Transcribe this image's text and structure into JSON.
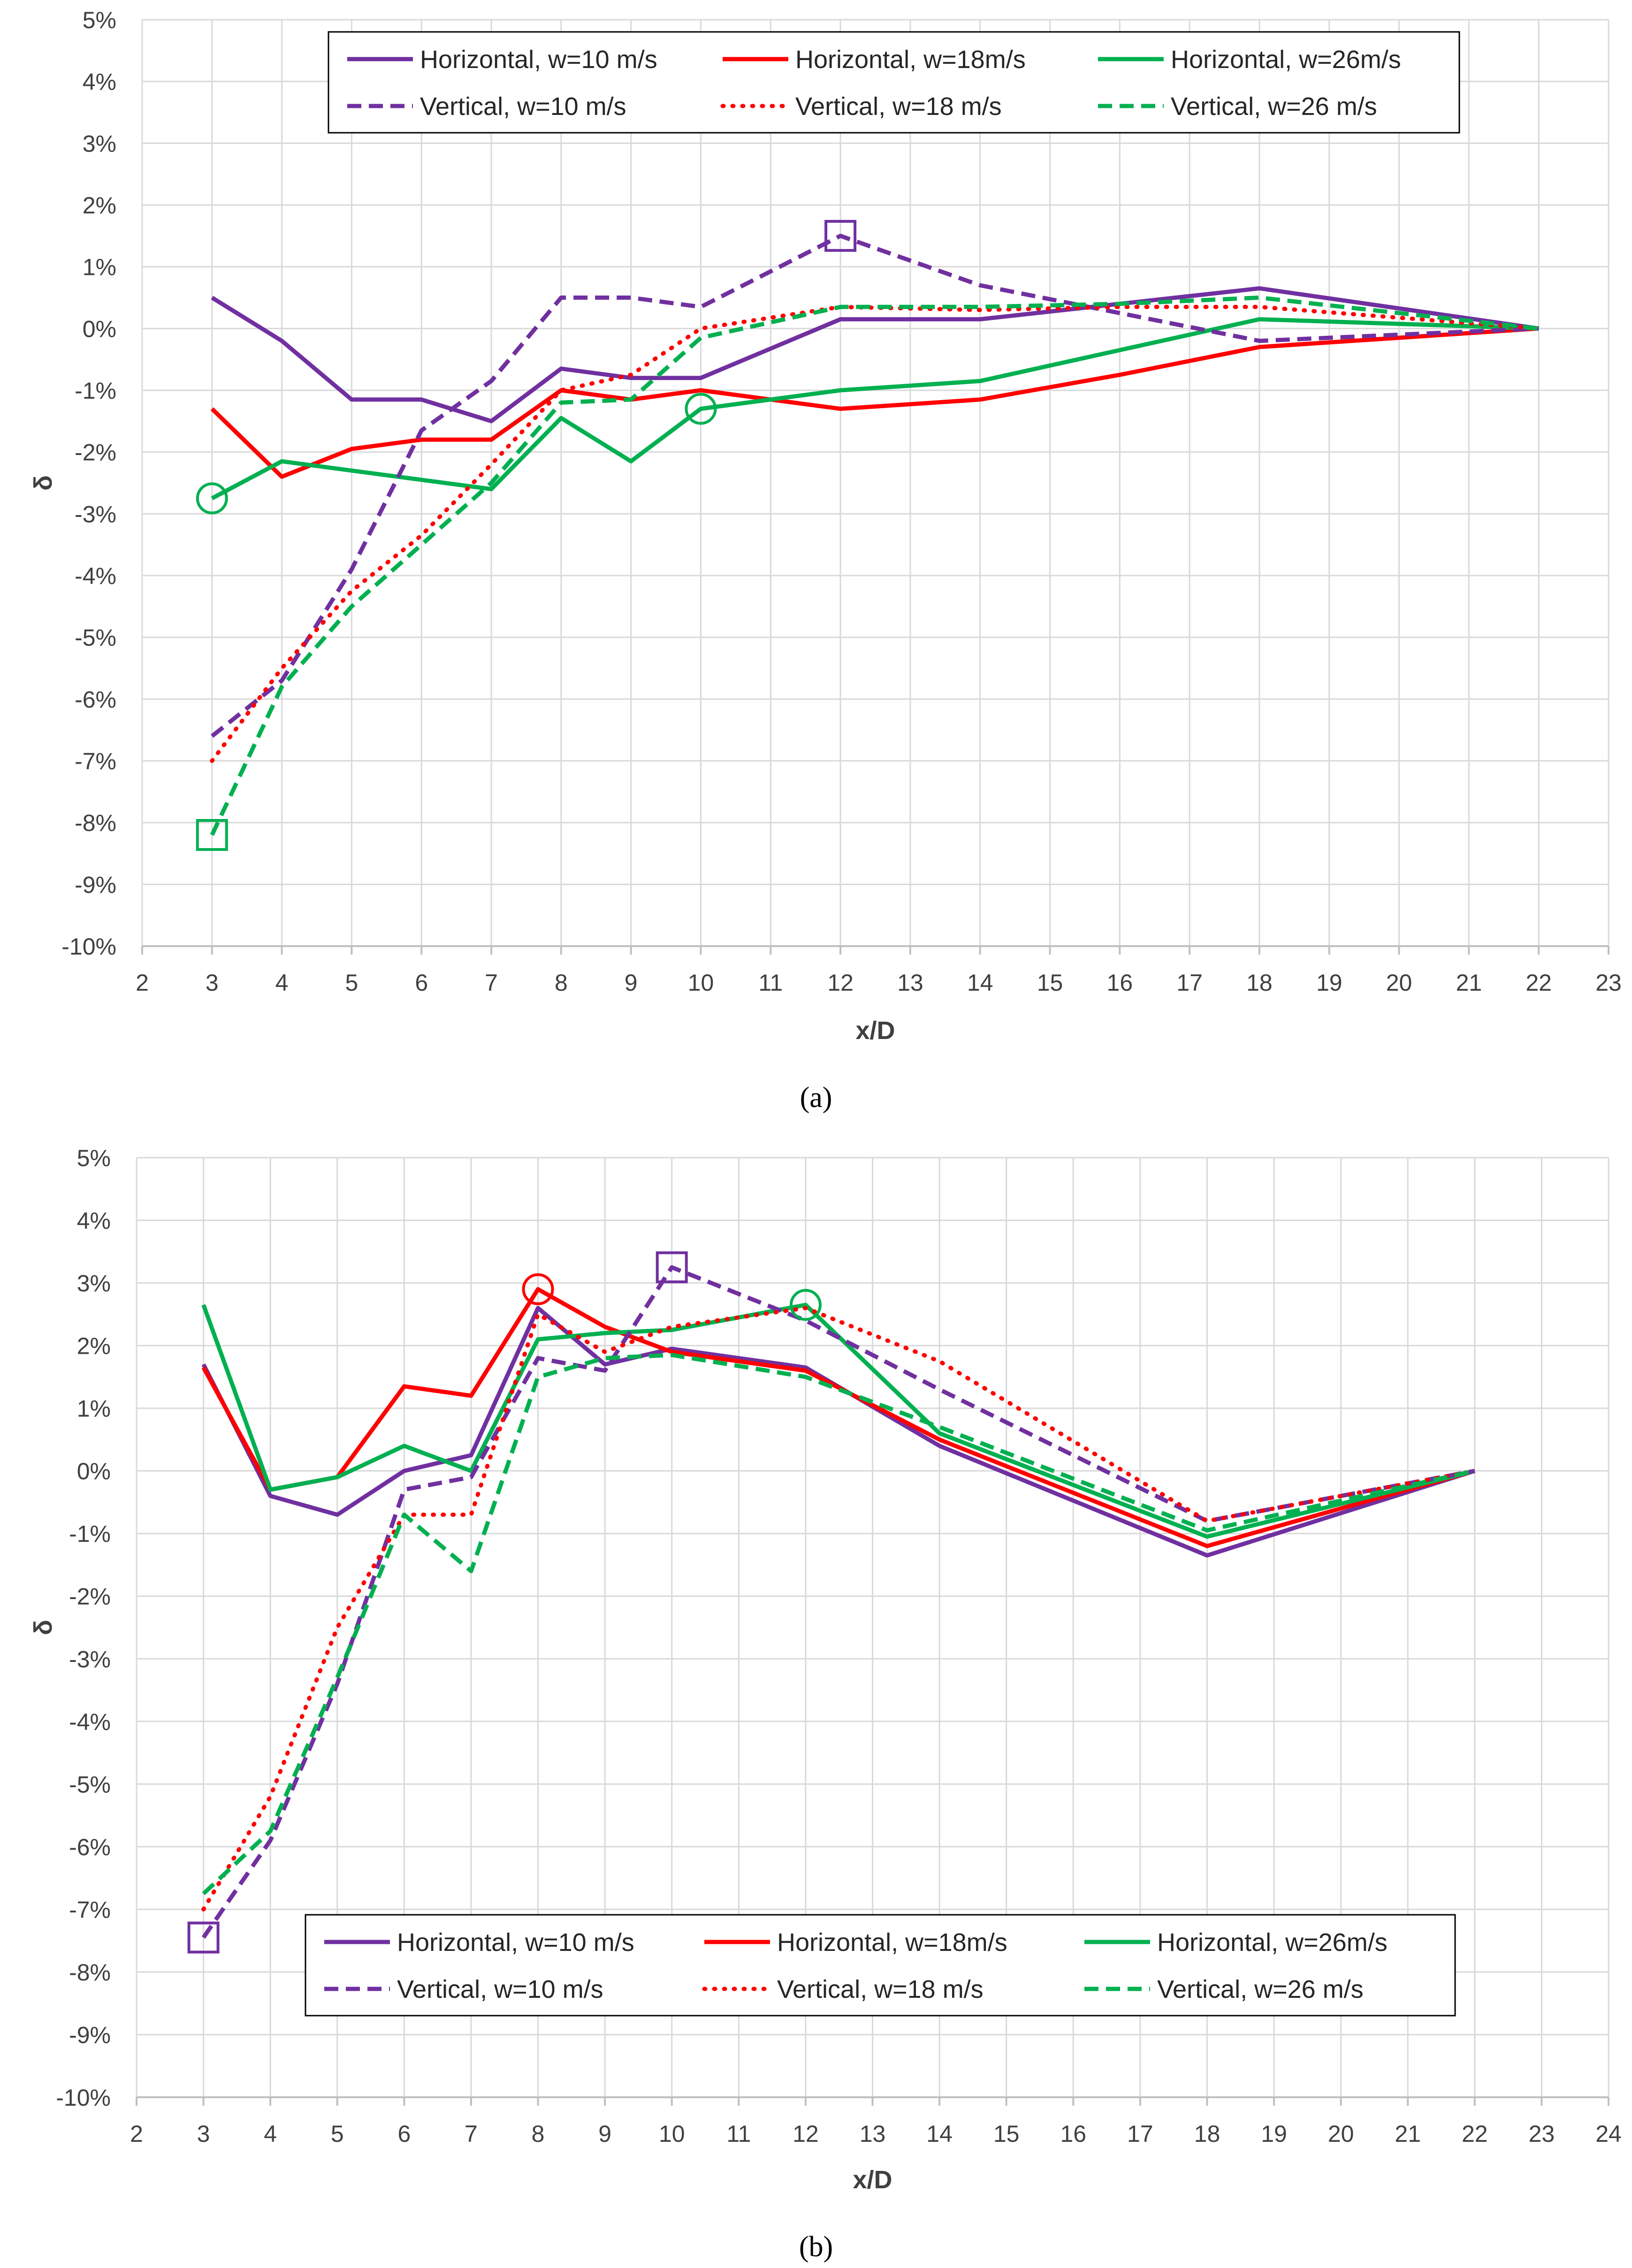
{
  "colors": {
    "purple": "#7030A0",
    "red": "#FF0000",
    "green": "#00B050",
    "grid": "#D9D9D9"
  },
  "legend": [
    "Horizontal, w=10 m/s",
    "Horizontal, w=18m/s",
    "Horizontal, w=26m/s",
    "Vertical, w=10 m/s",
    "Vertical, w=18 m/s",
    "Vertical, w=26 m/s"
  ],
  "chart_data": [
    {
      "type": "line",
      "caption": "(a)",
      "xlabel": "x/D",
      "ylabel": "δ",
      "xlim": [
        2,
        23
      ],
      "ylim": [
        -10,
        5
      ],
      "xticks": [
        "2",
        "3",
        "4",
        "5",
        "6",
        "7",
        "8",
        "9",
        "10",
        "11",
        "12",
        "13",
        "14",
        "15",
        "16",
        "17",
        "18",
        "19",
        "20",
        "21",
        "22",
        "23"
      ],
      "yticks": [
        "5%",
        "4%",
        "3%",
        "2%",
        "1%",
        "0%",
        "-1%",
        "-2%",
        "-3%",
        "-4%",
        "-5%",
        "-6%",
        "-7%",
        "-8%",
        "-9%",
        "-10%"
      ],
      "legend_position": "top",
      "series": [
        {
          "name": "Horizontal, w=10 m/s",
          "color": "purple",
          "style": "solid",
          "x": [
            3,
            4,
            5,
            6,
            7,
            8,
            9,
            10,
            12,
            14,
            16,
            18,
            22
          ],
          "y": [
            0.5,
            -0.2,
            -1.15,
            -1.15,
            -1.5,
            -0.65,
            -0.8,
            -0.8,
            0.15,
            0.15,
            0.4,
            0.65,
            0
          ]
        },
        {
          "name": "Horizontal, w=18m/s",
          "color": "red",
          "style": "solid",
          "x": [
            3,
            4,
            5,
            6,
            7,
            8,
            9,
            10,
            12,
            14,
            16,
            18,
            22
          ],
          "y": [
            -1.3,
            -2.4,
            -1.95,
            -1.8,
            -1.8,
            -1.0,
            -1.15,
            -1.0,
            -1.3,
            -1.15,
            -0.75,
            -0.3,
            0
          ]
        },
        {
          "name": "Horizontal, w=26m/s",
          "color": "green",
          "style": "solid",
          "x": [
            3,
            4,
            5,
            6,
            7,
            8,
            9,
            10,
            12,
            14,
            16,
            18,
            22
          ],
          "y": [
            -2.75,
            -2.15,
            -2.3,
            -2.45,
            -2.6,
            -1.45,
            -2.15,
            -1.3,
            -1.0,
            -0.85,
            -0.35,
            0.15,
            0
          ]
        },
        {
          "name": "Vertical, w=10 m/s",
          "color": "purple",
          "style": "dashed",
          "x": [
            3,
            4,
            5,
            6,
            7,
            8,
            9,
            10,
            12,
            14,
            16,
            18,
            22
          ],
          "y": [
            -6.6,
            -5.7,
            -3.9,
            -1.65,
            -0.85,
            0.5,
            0.5,
            0.35,
            1.5,
            0.7,
            0.25,
            -0.2,
            0
          ]
        },
        {
          "name": "Vertical, w=18 m/s",
          "color": "red",
          "style": "dotted",
          "x": [
            3,
            4,
            5,
            6,
            7,
            8,
            9,
            10,
            12,
            14,
            16,
            18,
            22
          ],
          "y": [
            -7.0,
            -5.5,
            -4.25,
            -3.35,
            -2.2,
            -1.0,
            -0.75,
            0.0,
            0.35,
            0.3,
            0.35,
            0.35,
            0
          ]
        },
        {
          "name": "Vertical, w=26 m/s",
          "color": "green",
          "style": "dashed",
          "x": [
            3,
            4,
            5,
            6,
            7,
            8,
            9,
            10,
            12,
            14,
            16,
            18,
            22
          ],
          "y": [
            -8.2,
            -5.8,
            -4.5,
            -3.5,
            -2.5,
            -1.2,
            -1.15,
            -0.15,
            0.35,
            0.35,
            0.4,
            0.5,
            0
          ]
        }
      ],
      "markers": [
        {
          "shape": "circle",
          "color": "green",
          "x": 3,
          "y": -2.75
        },
        {
          "shape": "square",
          "color": "green",
          "x": 3,
          "y": -8.2
        },
        {
          "shape": "circle",
          "color": "green",
          "x": 10,
          "y": -1.3
        },
        {
          "shape": "square",
          "color": "purple",
          "x": 12,
          "y": 1.5
        }
      ]
    },
    {
      "type": "line",
      "caption": "(b)",
      "xlabel": "x/D",
      "ylabel": "δ",
      "xlim": [
        2,
        24
      ],
      "ylim": [
        -10,
        5
      ],
      "xticks": [
        "2",
        "3",
        "4",
        "5",
        "6",
        "7",
        "8",
        "9",
        "10",
        "11",
        "12",
        "13",
        "14",
        "15",
        "16",
        "17",
        "18",
        "19",
        "20",
        "21",
        "22",
        "23",
        "24"
      ],
      "yticks": [
        "5%",
        "4%",
        "3%",
        "2%",
        "1%",
        "0%",
        "-1%",
        "-2%",
        "-3%",
        "-4%",
        "-5%",
        "-6%",
        "-7%",
        "-8%",
        "-9%",
        "-10%"
      ],
      "legend_position": "bottom",
      "series": [
        {
          "name": "Horizontal, w=10 m/s",
          "color": "purple",
          "style": "solid",
          "x": [
            3,
            4,
            5,
            6,
            7,
            8,
            9,
            10,
            12,
            14,
            18,
            22
          ],
          "y": [
            1.7,
            -0.4,
            -0.7,
            0.0,
            0.25,
            2.6,
            1.7,
            1.95,
            1.65,
            0.4,
            -1.35,
            0
          ]
        },
        {
          "name": "Horizontal, w=18m/s",
          "color": "red",
          "style": "solid",
          "x": [
            3,
            4,
            5,
            6,
            7,
            8,
            9,
            10,
            12,
            14,
            18,
            22
          ],
          "y": [
            1.65,
            -0.3,
            -0.1,
            1.35,
            1.2,
            2.9,
            2.3,
            1.9,
            1.6,
            0.5,
            -1.2,
            0
          ]
        },
        {
          "name": "Horizontal, w=26m/s",
          "color": "green",
          "style": "solid",
          "x": [
            3,
            4,
            5,
            6,
            7,
            8,
            9,
            10,
            12,
            14,
            18,
            22
          ],
          "y": [
            2.65,
            -0.3,
            -0.1,
            0.4,
            0.0,
            2.1,
            2.2,
            2.25,
            2.65,
            0.6,
            -1.05,
            0
          ]
        },
        {
          "name": "Vertical, w=10 m/s",
          "color": "purple",
          "style": "dashed",
          "x": [
            3,
            4,
            5,
            6,
            7,
            8,
            9,
            10,
            12,
            14,
            18,
            22
          ],
          "y": [
            -7.45,
            -5.9,
            -3.4,
            -0.3,
            -0.1,
            1.8,
            1.6,
            3.25,
            2.4,
            1.3,
            -0.8,
            0
          ]
        },
        {
          "name": "Vertical, w=18 m/s",
          "color": "red",
          "style": "dotted",
          "x": [
            3,
            4,
            5,
            6,
            7,
            8,
            9,
            10,
            12,
            14,
            18,
            22
          ],
          "y": [
            -7.0,
            -5.2,
            -2.5,
            -0.7,
            -0.7,
            2.5,
            1.9,
            2.3,
            2.6,
            1.75,
            -0.8,
            0
          ]
        },
        {
          "name": "Vertical, w=26 m/s",
          "color": "green",
          "style": "dashed",
          "x": [
            3,
            4,
            5,
            6,
            7,
            8,
            9,
            10,
            12,
            14,
            18,
            22
          ],
          "y": [
            -6.75,
            -5.75,
            -3.3,
            -0.7,
            -1.6,
            1.5,
            1.8,
            1.85,
            1.5,
            0.7,
            -0.95,
            0
          ]
        }
      ],
      "markers": [
        {
          "shape": "square",
          "color": "purple",
          "x": 3,
          "y": -7.45
        },
        {
          "shape": "circle",
          "color": "red",
          "x": 8,
          "y": 2.9
        },
        {
          "shape": "square",
          "color": "purple",
          "x": 10,
          "y": 3.25
        },
        {
          "shape": "circle",
          "color": "green",
          "x": 12,
          "y": 2.65
        }
      ]
    }
  ]
}
